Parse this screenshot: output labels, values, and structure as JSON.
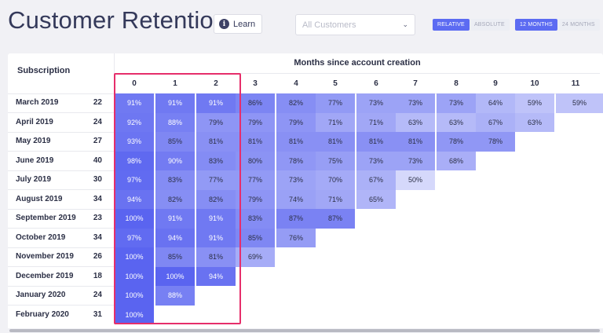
{
  "title": "Customer Retention",
  "learn_label": "Learn",
  "filter": {
    "value": "All Customers"
  },
  "mode_toggle": [
    "RELATIVE",
    "ABSOLUTE"
  ],
  "range_toggle": [
    "12 MONTHS",
    "24 MONTHS"
  ],
  "table": {
    "row_header": "Subscription",
    "col_group_header": "Months since account creation",
    "months": [
      "0",
      "1",
      "2",
      "3",
      "4",
      "5",
      "6",
      "7",
      "8",
      "9",
      "10",
      "11"
    ],
    "rows": [
      {
        "label": "March 2019",
        "count": "22",
        "values": [
          "91%",
          "91%",
          "91%",
          "86%",
          "82%",
          "77%",
          "73%",
          "73%",
          "73%",
          "64%",
          "59%",
          "59%"
        ]
      },
      {
        "label": "April 2019",
        "count": "24",
        "values": [
          "92%",
          "88%",
          "79%",
          "79%",
          "79%",
          "71%",
          "71%",
          "63%",
          "63%",
          "67%",
          "63%"
        ]
      },
      {
        "label": "May 2019",
        "count": "27",
        "values": [
          "93%",
          "85%",
          "81%",
          "81%",
          "81%",
          "81%",
          "81%",
          "81%",
          "78%",
          "78%"
        ]
      },
      {
        "label": "June 2019",
        "count": "40",
        "values": [
          "98%",
          "90%",
          "83%",
          "80%",
          "78%",
          "75%",
          "73%",
          "73%",
          "68%"
        ]
      },
      {
        "label": "July 2019",
        "count": "30",
        "values": [
          "97%",
          "83%",
          "77%",
          "77%",
          "73%",
          "70%",
          "67%",
          "50%"
        ]
      },
      {
        "label": "August 2019",
        "count": "34",
        "values": [
          "94%",
          "82%",
          "82%",
          "79%",
          "74%",
          "71%",
          "65%"
        ]
      },
      {
        "label": "September 2019",
        "count": "23",
        "values": [
          "100%",
          "91%",
          "91%",
          "83%",
          "87%",
          "87%"
        ]
      },
      {
        "label": "October 2019",
        "count": "34",
        "values": [
          "97%",
          "94%",
          "91%",
          "85%",
          "76%"
        ]
      },
      {
        "label": "November 2019",
        "count": "26",
        "values": [
          "100%",
          "85%",
          "81%",
          "69%"
        ]
      },
      {
        "label": "December 2019",
        "count": "18",
        "values": [
          "100%",
          "100%",
          "94%"
        ]
      },
      {
        "label": "January 2020",
        "count": "24",
        "values": [
          "100%",
          "88%"
        ]
      },
      {
        "label": "February 2020",
        "count": "31",
        "values": [
          "100%"
        ]
      }
    ]
  },
  "colors": {
    "accent": "#5c6bf2",
    "highlight": "#e62e6b",
    "heat_low": "#ffffff",
    "heat_high": "#5a64f0"
  }
}
